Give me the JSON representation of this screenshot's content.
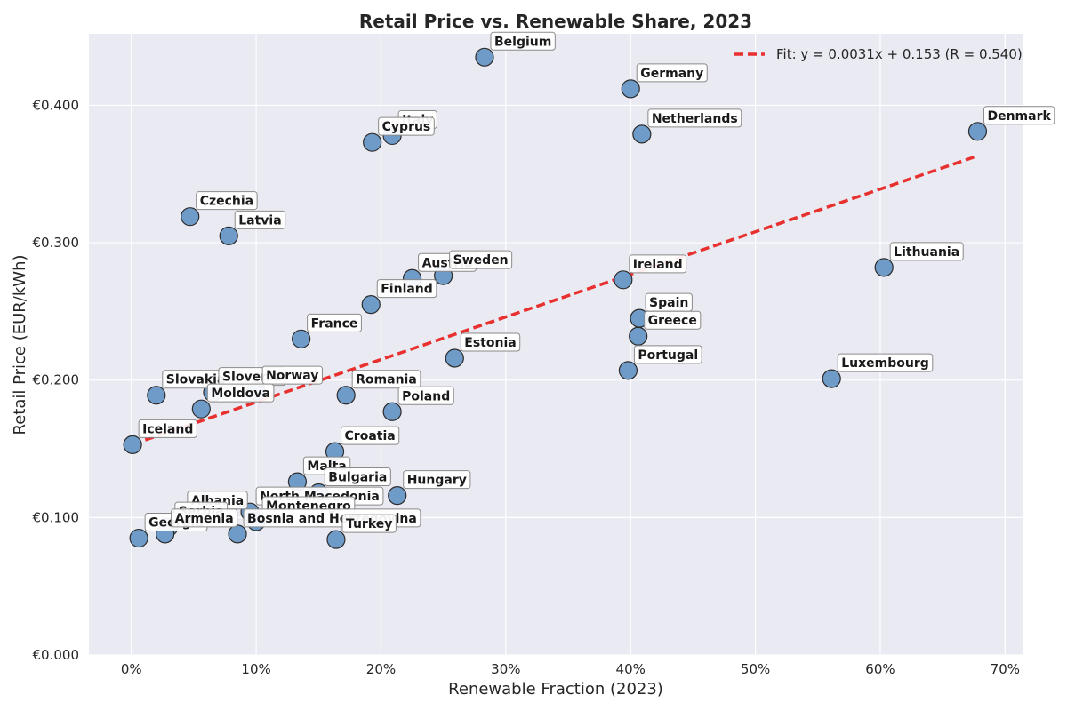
{
  "chart_data": {
    "type": "scatter",
    "title": "Retail Price vs. Renewable Share, 2023",
    "xlabel": "Renewable Fraction (2023)",
    "ylabel": "Retail Price (EUR/kWh)",
    "xlim": [
      -0.034,
      0.714
    ],
    "ylim": [
      0.0,
      0.452
    ],
    "x_ticks": [
      {
        "value": 0.0,
        "label": "0%"
      },
      {
        "value": 0.1,
        "label": "10%"
      },
      {
        "value": 0.2,
        "label": "20%"
      },
      {
        "value": 0.3,
        "label": "30%"
      },
      {
        "value": 0.4,
        "label": "40%"
      },
      {
        "value": 0.5,
        "label": "50%"
      },
      {
        "value": 0.6,
        "label": "60%"
      },
      {
        "value": 0.7,
        "label": "70%"
      }
    ],
    "y_ticks": [
      {
        "value": 0.0,
        "label": "€0.000"
      },
      {
        "value": 0.1,
        "label": "€0.100"
      },
      {
        "value": 0.2,
        "label": "€0.200"
      },
      {
        "value": 0.3,
        "label": "€0.300"
      },
      {
        "value": 0.4,
        "label": "€0.400"
      }
    ],
    "grid": true,
    "point_color": "#6f9bc8",
    "fit_color": "#e8302f",
    "fit": {
      "slope": 0.0031,
      "intercept": 0.153,
      "x_range": [
        0.001,
        0.678
      ],
      "label": "Fit: y = 0.0031x + 0.153 (R = 0.540)"
    },
    "legend_position": "top-right",
    "points": [
      {
        "name": "Belgium",
        "x": 0.283,
        "y": 0.435
      },
      {
        "name": "Germany",
        "x": 0.4,
        "y": 0.412
      },
      {
        "name": "Italy",
        "x": 0.209,
        "y": 0.378
      },
      {
        "name": "Cyprus",
        "x": 0.193,
        "y": 0.373
      },
      {
        "name": "Netherlands",
        "x": 0.409,
        "y": 0.379
      },
      {
        "name": "Denmark",
        "x": 0.678,
        "y": 0.381
      },
      {
        "name": "Czechia",
        "x": 0.047,
        "y": 0.319
      },
      {
        "name": "Latvia",
        "x": 0.078,
        "y": 0.305
      },
      {
        "name": "Austria",
        "x": 0.225,
        "y": 0.274
      },
      {
        "name": "Sweden",
        "x": 0.25,
        "y": 0.276
      },
      {
        "name": "Finland",
        "x": 0.192,
        "y": 0.255
      },
      {
        "name": "Ireland",
        "x": 0.394,
        "y": 0.273
      },
      {
        "name": "Lithuania",
        "x": 0.603,
        "y": 0.282
      },
      {
        "name": "France",
        "x": 0.136,
        "y": 0.23
      },
      {
        "name": "Spain",
        "x": 0.407,
        "y": 0.245
      },
      {
        "name": "Greece",
        "x": 0.406,
        "y": 0.232
      },
      {
        "name": "Estonia",
        "x": 0.259,
        "y": 0.216
      },
      {
        "name": "Portugal",
        "x": 0.398,
        "y": 0.207
      },
      {
        "name": "Luxembourg",
        "x": 0.561,
        "y": 0.201
      },
      {
        "name": "Slovakia",
        "x": 0.02,
        "y": 0.189
      },
      {
        "name": "Slovenia",
        "x": 0.065,
        "y": 0.191
      },
      {
        "name": "Norway",
        "x": 0.1,
        "y": 0.192
      },
      {
        "name": "Moldova",
        "x": 0.056,
        "y": 0.179
      },
      {
        "name": "Romania",
        "x": 0.172,
        "y": 0.189
      },
      {
        "name": "Poland",
        "x": 0.209,
        "y": 0.177
      },
      {
        "name": "Iceland",
        "x": 0.001,
        "y": 0.153
      },
      {
        "name": "Croatia",
        "x": 0.163,
        "y": 0.148
      },
      {
        "name": "Malta",
        "x": 0.133,
        "y": 0.126
      },
      {
        "name": "Bulgaria",
        "x": 0.15,
        "y": 0.118
      },
      {
        "name": "Hungary",
        "x": 0.213,
        "y": 0.116
      },
      {
        "name": "North Macedonia",
        "x": 0.095,
        "y": 0.104
      },
      {
        "name": "Albania",
        "x": 0.04,
        "y": 0.101
      },
      {
        "name": "Montenegro",
        "x": 0.1,
        "y": 0.097
      },
      {
        "name": "Serbia",
        "x": 0.03,
        "y": 0.093
      },
      {
        "name": "Bosnia and Herzegovina",
        "x": 0.085,
        "y": 0.088
      },
      {
        "name": "Georgia",
        "x": 0.006,
        "y": 0.085
      },
      {
        "name": "Armenia",
        "x": 0.027,
        "y": 0.088
      },
      {
        "name": "Turkey",
        "x": 0.164,
        "y": 0.084
      }
    ]
  }
}
